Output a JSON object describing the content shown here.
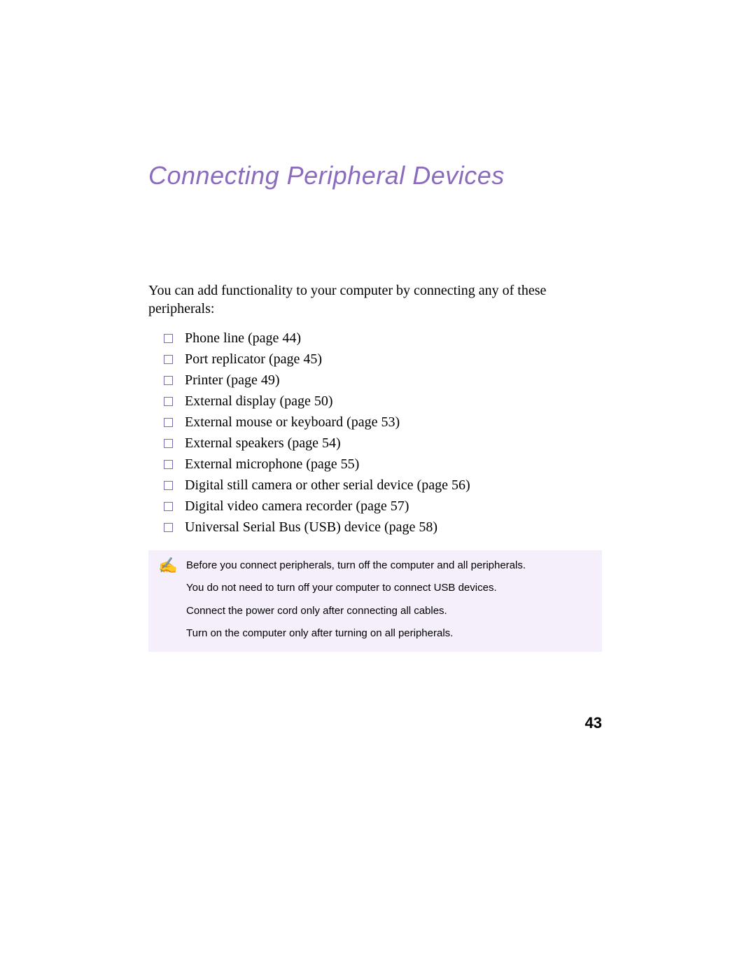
{
  "title": "Connecting Peripheral Devices",
  "intro": "You can add functionality to your computer by connecting any of these peripherals:",
  "items": [
    "Phone line (page 44)",
    "Port replicator (page 45)",
    "Printer (page 49)",
    "External display (page 50)",
    "External mouse or keyboard (page 53)",
    "External speakers (page 54)",
    "External microphone (page 55)",
    "Digital still camera or other serial device (page 56)",
    "Digital video camera recorder (page 57)",
    "Universal Serial Bus (USB) device (page 58)"
  ],
  "note_icon": "✍",
  "notes": [
    "Before you connect peripherals, turn off the computer and all peripherals.",
    "You do not need to turn off your computer to connect USB devices.",
    "Connect the power cord only after connecting all cables.",
    "Turn on the computer only after turning on all peripherals."
  ],
  "page_number": "43",
  "colors": {
    "title": "#8a6bbe",
    "bullet_border": "#7f69b5",
    "note_bg": "#f4effb",
    "text": "#000000",
    "background": "#ffffff"
  },
  "typography": {
    "title_font": "Verdana italic",
    "title_size_pt": 27,
    "body_font": "Palatino serif",
    "body_size_pt": 15,
    "note_font": "Verdana",
    "note_size_pt": 11,
    "pagenum_size_pt": 17,
    "pagenum_weight": "bold"
  }
}
